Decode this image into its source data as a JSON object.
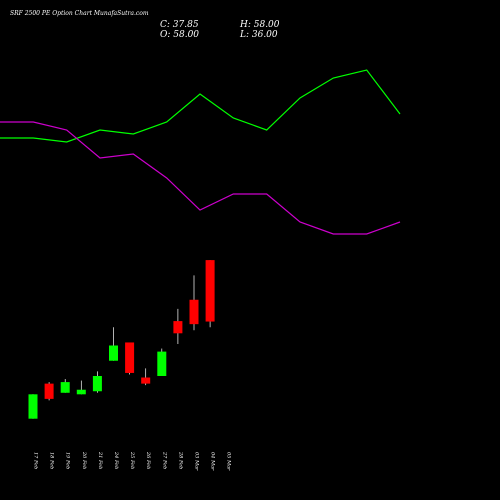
{
  "header": {
    "title": "SRF 2500  PE Option  Chart MunafaSutra.com",
    "ohlc": {
      "c": "C: 37.85",
      "h": "H: 58.00",
      "o": "O: 58.00",
      "l": "L: 36.00"
    }
  },
  "colors": {
    "background": "#000000",
    "up": "#00ff00",
    "down": "#ff0000",
    "wick": "#ffffff",
    "line_green": "#00ff00",
    "line_magenta": "#cc00cc"
  },
  "chart_data": {
    "type": "candlestick",
    "categories": [
      "17 Feb",
      "18 Feb",
      "19 Feb",
      "20 Feb",
      "21 Feb",
      "24 Feb",
      "25 Feb",
      "26 Feb",
      "27 Feb",
      "28 Feb",
      "03 Mar",
      "04 Mar",
      "05 Mar"
    ],
    "x_tick_labels": [
      "17 Feb",
      "18 Feb",
      "19 Feb",
      "20 Feb",
      "21 Feb",
      "24 Feb",
      "25 Feb",
      "26 Feb",
      "27 Feb",
      "28 Feb",
      "03 Mar",
      "04 Mar",
      "05 Mar"
    ],
    "candles": [
      {
        "date": "17 Feb",
        "open": 6,
        "close": 14,
        "high": 14,
        "low": 6,
        "direction": "up"
      },
      {
        "date": "18 Feb",
        "open": 17.5,
        "close": 12.5,
        "high": 18,
        "low": 12,
        "direction": "down"
      },
      {
        "date": "19 Feb",
        "open": 14.5,
        "close": 18,
        "high": 19,
        "low": 14.5,
        "direction": "up"
      },
      {
        "date": "20 Feb",
        "open": 14,
        "close": 15.5,
        "high": 18.5,
        "low": 14,
        "direction": "up"
      },
      {
        "date": "21 Feb",
        "open": 15,
        "close": 20,
        "high": 21.5,
        "low": 14.5,
        "direction": "up"
      },
      {
        "date": "24 Feb",
        "open": 25,
        "close": 30,
        "high": 36,
        "low": 25,
        "direction": "up"
      },
      {
        "date": "25 Feb",
        "open": 31,
        "close": 21,
        "high": 31,
        "low": 20.5,
        "direction": "down"
      },
      {
        "date": "26 Feb",
        "open": 19.5,
        "close": 17.5,
        "high": 22.5,
        "low": 17,
        "direction": "down"
      },
      {
        "date": "27 Feb",
        "open": 20,
        "close": 28,
        "high": 29,
        "low": 20,
        "direction": "up"
      },
      {
        "date": "28 Feb",
        "open": 38,
        "close": 34,
        "high": 42,
        "low": 30.5,
        "direction": "down"
      },
      {
        "date": "03 Mar",
        "open": 45,
        "close": 37,
        "high": 53,
        "low": 35,
        "direction": "down"
      },
      {
        "date": "04 Mar",
        "open": 58,
        "close": 37.85,
        "high": 58,
        "low": 36,
        "direction": "down"
      }
    ],
    "series": [
      {
        "color": "#00ff00",
        "values": [
          38,
          38,
          37,
          40,
          39,
          42,
          49,
          43,
          40,
          48,
          53,
          55,
          44
        ]
      },
      {
        "color": "#cc00cc",
        "values": [
          42,
          42,
          40,
          33,
          34,
          28,
          20,
          24,
          24,
          17,
          14,
          14,
          17
        ]
      }
    ],
    "grid": false,
    "legend": "none"
  }
}
